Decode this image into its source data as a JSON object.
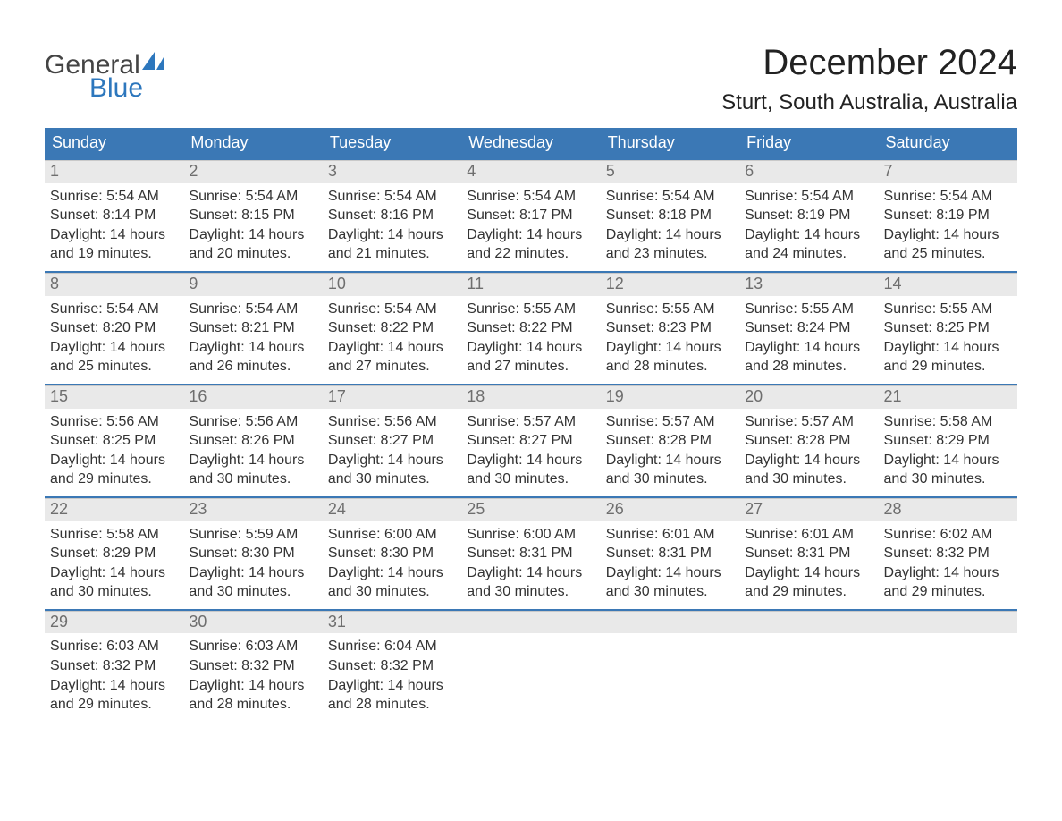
{
  "logo": {
    "top": "General",
    "bottom": "Blue",
    "top_color": "#444444",
    "bottom_color": "#2d77bd",
    "sail_color": "#2d77bd"
  },
  "title": "December 2024",
  "location": "Sturt, South Australia, Australia",
  "colors": {
    "header_bg": "#3b78b5",
    "header_text": "#ffffff",
    "day_band_bg": "#e9e9e9",
    "day_band_text": "#6e6e6e",
    "body_text": "#333333",
    "rule": "#3b78b5",
    "background": "#ffffff"
  },
  "typography": {
    "month_title_size": 40,
    "location_size": 24,
    "day_header_size": 18,
    "day_number_size": 18,
    "detail_size": 16,
    "font_family": "Arial"
  },
  "day_headers": [
    "Sunday",
    "Monday",
    "Tuesday",
    "Wednesday",
    "Thursday",
    "Friday",
    "Saturday"
  ],
  "weeks": [
    [
      {
        "n": "1",
        "sr": "Sunrise: 5:54 AM",
        "ss": "Sunset: 8:14 PM",
        "d1": "Daylight: 14 hours",
        "d2": "and 19 minutes."
      },
      {
        "n": "2",
        "sr": "Sunrise: 5:54 AM",
        "ss": "Sunset: 8:15 PM",
        "d1": "Daylight: 14 hours",
        "d2": "and 20 minutes."
      },
      {
        "n": "3",
        "sr": "Sunrise: 5:54 AM",
        "ss": "Sunset: 8:16 PM",
        "d1": "Daylight: 14 hours",
        "d2": "and 21 minutes."
      },
      {
        "n": "4",
        "sr": "Sunrise: 5:54 AM",
        "ss": "Sunset: 8:17 PM",
        "d1": "Daylight: 14 hours",
        "d2": "and 22 minutes."
      },
      {
        "n": "5",
        "sr": "Sunrise: 5:54 AM",
        "ss": "Sunset: 8:18 PM",
        "d1": "Daylight: 14 hours",
        "d2": "and 23 minutes."
      },
      {
        "n": "6",
        "sr": "Sunrise: 5:54 AM",
        "ss": "Sunset: 8:19 PM",
        "d1": "Daylight: 14 hours",
        "d2": "and 24 minutes."
      },
      {
        "n": "7",
        "sr": "Sunrise: 5:54 AM",
        "ss": "Sunset: 8:19 PM",
        "d1": "Daylight: 14 hours",
        "d2": "and 25 minutes."
      }
    ],
    [
      {
        "n": "8",
        "sr": "Sunrise: 5:54 AM",
        "ss": "Sunset: 8:20 PM",
        "d1": "Daylight: 14 hours",
        "d2": "and 25 minutes."
      },
      {
        "n": "9",
        "sr": "Sunrise: 5:54 AM",
        "ss": "Sunset: 8:21 PM",
        "d1": "Daylight: 14 hours",
        "d2": "and 26 minutes."
      },
      {
        "n": "10",
        "sr": "Sunrise: 5:54 AM",
        "ss": "Sunset: 8:22 PM",
        "d1": "Daylight: 14 hours",
        "d2": "and 27 minutes."
      },
      {
        "n": "11",
        "sr": "Sunrise: 5:55 AM",
        "ss": "Sunset: 8:22 PM",
        "d1": "Daylight: 14 hours",
        "d2": "and 27 minutes."
      },
      {
        "n": "12",
        "sr": "Sunrise: 5:55 AM",
        "ss": "Sunset: 8:23 PM",
        "d1": "Daylight: 14 hours",
        "d2": "and 28 minutes."
      },
      {
        "n": "13",
        "sr": "Sunrise: 5:55 AM",
        "ss": "Sunset: 8:24 PM",
        "d1": "Daylight: 14 hours",
        "d2": "and 28 minutes."
      },
      {
        "n": "14",
        "sr": "Sunrise: 5:55 AM",
        "ss": "Sunset: 8:25 PM",
        "d1": "Daylight: 14 hours",
        "d2": "and 29 minutes."
      }
    ],
    [
      {
        "n": "15",
        "sr": "Sunrise: 5:56 AM",
        "ss": "Sunset: 8:25 PM",
        "d1": "Daylight: 14 hours",
        "d2": "and 29 minutes."
      },
      {
        "n": "16",
        "sr": "Sunrise: 5:56 AM",
        "ss": "Sunset: 8:26 PM",
        "d1": "Daylight: 14 hours",
        "d2": "and 30 minutes."
      },
      {
        "n": "17",
        "sr": "Sunrise: 5:56 AM",
        "ss": "Sunset: 8:27 PM",
        "d1": "Daylight: 14 hours",
        "d2": "and 30 minutes."
      },
      {
        "n": "18",
        "sr": "Sunrise: 5:57 AM",
        "ss": "Sunset: 8:27 PM",
        "d1": "Daylight: 14 hours",
        "d2": "and 30 minutes."
      },
      {
        "n": "19",
        "sr": "Sunrise: 5:57 AM",
        "ss": "Sunset: 8:28 PM",
        "d1": "Daylight: 14 hours",
        "d2": "and 30 minutes."
      },
      {
        "n": "20",
        "sr": "Sunrise: 5:57 AM",
        "ss": "Sunset: 8:28 PM",
        "d1": "Daylight: 14 hours",
        "d2": "and 30 minutes."
      },
      {
        "n": "21",
        "sr": "Sunrise: 5:58 AM",
        "ss": "Sunset: 8:29 PM",
        "d1": "Daylight: 14 hours",
        "d2": "and 30 minutes."
      }
    ],
    [
      {
        "n": "22",
        "sr": "Sunrise: 5:58 AM",
        "ss": "Sunset: 8:29 PM",
        "d1": "Daylight: 14 hours",
        "d2": "and 30 minutes."
      },
      {
        "n": "23",
        "sr": "Sunrise: 5:59 AM",
        "ss": "Sunset: 8:30 PM",
        "d1": "Daylight: 14 hours",
        "d2": "and 30 minutes."
      },
      {
        "n": "24",
        "sr": "Sunrise: 6:00 AM",
        "ss": "Sunset: 8:30 PM",
        "d1": "Daylight: 14 hours",
        "d2": "and 30 minutes."
      },
      {
        "n": "25",
        "sr": "Sunrise: 6:00 AM",
        "ss": "Sunset: 8:31 PM",
        "d1": "Daylight: 14 hours",
        "d2": "and 30 minutes."
      },
      {
        "n": "26",
        "sr": "Sunrise: 6:01 AM",
        "ss": "Sunset: 8:31 PM",
        "d1": "Daylight: 14 hours",
        "d2": "and 30 minutes."
      },
      {
        "n": "27",
        "sr": "Sunrise: 6:01 AM",
        "ss": "Sunset: 8:31 PM",
        "d1": "Daylight: 14 hours",
        "d2": "and 29 minutes."
      },
      {
        "n": "28",
        "sr": "Sunrise: 6:02 AM",
        "ss": "Sunset: 8:32 PM",
        "d1": "Daylight: 14 hours",
        "d2": "and 29 minutes."
      }
    ],
    [
      {
        "n": "29",
        "sr": "Sunrise: 6:03 AM",
        "ss": "Sunset: 8:32 PM",
        "d1": "Daylight: 14 hours",
        "d2": "and 29 minutes."
      },
      {
        "n": "30",
        "sr": "Sunrise: 6:03 AM",
        "ss": "Sunset: 8:32 PM",
        "d1": "Daylight: 14 hours",
        "d2": "and 28 minutes."
      },
      {
        "n": "31",
        "sr": "Sunrise: 6:04 AM",
        "ss": "Sunset: 8:32 PM",
        "d1": "Daylight: 14 hours",
        "d2": "and 28 minutes."
      },
      {
        "empty": true
      },
      {
        "empty": true
      },
      {
        "empty": true
      },
      {
        "empty": true
      }
    ]
  ]
}
